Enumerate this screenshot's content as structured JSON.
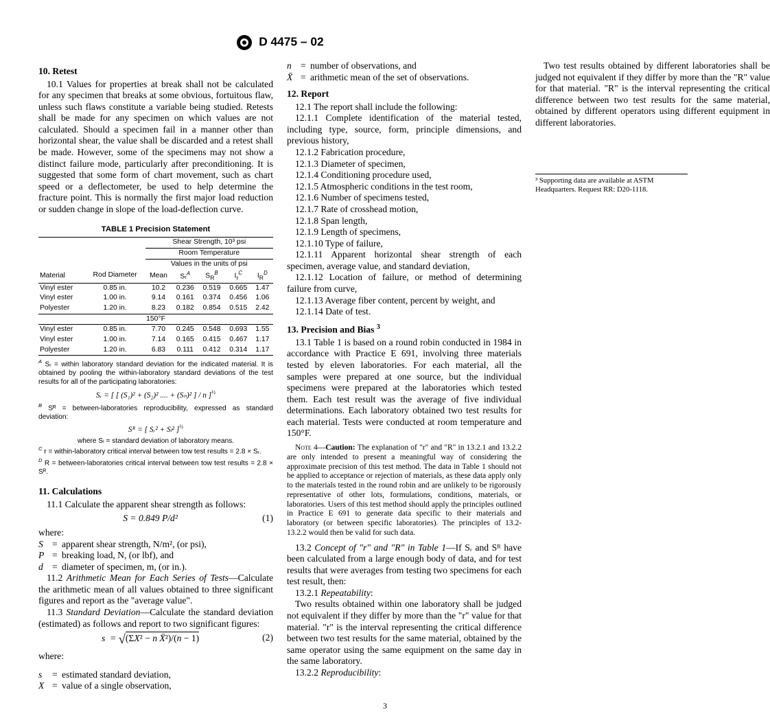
{
  "header": {
    "designation": "D 4475 – 02"
  },
  "s10": {
    "title": "10. Retest",
    "p1": "10.1 Values for properties at break shall not be calculated for any specimen that breaks at some obvious, fortuitous flaw, unless such flaws constitute a variable being studied. Retests shall be made for any specimen on which values are not calculated. Should a specimen fail in a manner other than horizontal shear, the value shall be discarded and a retest shall be made. However, some of the specimens may not show a distinct failure mode, particularly after preconditioning. It is suggested that some form of chart movement, such as chart speed or a deflectometer, be used to help determine the fracture point. This is normally the first major load reduction or sudden change in slope of the load-deflection curve."
  },
  "table1": {
    "title": "TABLE 1  Precision Statement",
    "head1": "Shear Strength, 10³ psi",
    "head2": "Room Temperature",
    "head3": "Values in the units of psi",
    "col_material": "Material",
    "col_rod": "Rod Diameter",
    "col_mean": "Mean",
    "col_sr": "Sᵣ",
    "col_sR": "S",
    "col_ir": "I",
    "col_iR": "I",
    "supA": "A",
    "supB": "B",
    "supC": "C",
    "supD": "D",
    "subR": "R",
    "subr": "r",
    "rows_rt": [
      [
        "Vinyl ester",
        "0.85 in.",
        "10.2",
        "0.236",
        "0.519",
        "0.665",
        "1.47"
      ],
      [
        "Vinyl ester",
        "1.00 in.",
        "9.14",
        "0.161",
        "0.374",
        "0.456",
        "1.06"
      ],
      [
        "Polyester",
        "1.20 in.",
        "8.23",
        "0.182",
        "0.854",
        "0.515",
        "2.42"
      ]
    ],
    "mid_label": "150°F",
    "rows_150": [
      [
        "Vinyl ester",
        "0.85 in.",
        "7.70",
        "0.245",
        "0.548",
        "0.693",
        "1.55"
      ],
      [
        "Vinyl ester",
        "1.00 in.",
        "7.14",
        "0.165",
        "0.415",
        "0.467",
        "1.17"
      ],
      [
        "Polyester",
        "1.20 in.",
        "6.83",
        "0.111",
        "0.412",
        "0.314",
        "1.17"
      ]
    ],
    "fnA": " Sᵣ = within laboratory standard deviation for the indicated material. It is obtained by pooling the within-laboratory standard deviations of the test results for all of the participating laboratories:",
    "fnA_eq": "Sᵣ = [ [ (S₁)² + (S₂)² .... + (Sₙ)² ] / n ]",
    "fnA_eq_exp": "½",
    "fnB": " Sᴿ = between-laboratories reproducibility, expressed as standard deviation:",
    "fnB_eq": "Sᴿ = [ Sᵣ² + Sₗ² ]",
    "fnB_eq_exp": "½",
    "fnB_sub": "where Sₗ = standard deviation of laboratory means.",
    "fnC": " r = within-laboratory critical interval between tow test results = 2.8 × Sᵣ.",
    "fnD": " R = between-laboratories critical interval between tow test results = 2.8 × Sᴿ."
  },
  "s11": {
    "title": "11. Calculations",
    "p1": "11.1 Calculate the apparent shear strength as follows:",
    "eq1": "S  = 0.849 P/d²",
    "eq1_num": "(1)",
    "where": "where:",
    "S": "apparent shear strength, N/m², (or psi),",
    "P": "breaking load, N, (or lbf), and",
    "d": "diameter of specimen, m, (or in.).",
    "p2a": "11.2 ",
    "p2i": "Arithmetic Mean for Each Series of Tests",
    "p2b": "—Calculate the arithmetic mean of all values obtained to three significant figures and report as the \"average value\".",
    "p3a": "11.3 ",
    "p3i": "Standard Deviation",
    "p3b": "—Calculate the standard deviation (estimated) as follows and report to two significant figures:",
    "eq2_num": "(2)",
    "where2": "where:",
    "s_def": "estimated standard deviation,",
    "X_def": "value of a single observation,",
    "n_def": "number of observations, and",
    "Xbar_def": "arithmetic mean of the set of observations."
  },
  "s12": {
    "title": "12. Report",
    "p1": "12.1 The report shall include the following:",
    "items": [
      "12.1.1 Complete identification of the material tested, including type, source, form, principle dimensions, and previous history,",
      "12.1.2 Fabrication procedure,",
      "12.1.3 Diameter of specimen,",
      "12.1.4 Conditioning procedure used,",
      "12.1.5 Atmospheric conditions in the test room,",
      "12.1.6 Number of specimens tested,",
      "12.1.7 Rate of crosshead motion,",
      "12.1.8 Span length,",
      "12.1.9 Length of specimens,",
      "12.1.10 Type of failure,",
      "12.1.11 Apparent horizontal shear strength of each specimen, average value, and standard deviation,",
      "12.1.12 Location of failure, or method of determining failure from curve,",
      "12.1.13 Average fiber content, percent by weight, and",
      "12.1.14 Date of test."
    ]
  },
  "s13": {
    "title": "13. Precision and Bias ",
    "title_sup": "3",
    "p1": "13.1 Table 1 is based on a round robin conducted in 1984 in accordance with Practice E 691, involving three materials tested by eleven laboratories. For each material, all the samples were prepared at one source, but the individual specimens were prepared at the laboratories which tested them. Each test result was the average of five individual determinations. Each laboratory obtained two test results for each material. Tests were conducted at room temperature and 150°F.",
    "note4_label": "Note 4—",
    "note4_caution": "Caution:",
    "note4_body": " The explanation of \"r\" and \"R\" in 13.2.1 and 13.2.2 are only intended to present a meaningful way of considering the approximate precision of this test method. The data in Table 1 should not be applied to acceptance or rejection of materials, as these data apply only to the materials tested in the round robin and are unlikely to be rigorously representative of other lots, formulations, conditions, materials, or laboratories. Users of this test method should apply the principles outlined in Practice E 691 to generate data specific to their materials and laboratory (or between specific laboratories). The principles of 13.2-13.2.2 would then be valid for such data.",
    "p2a": "13.2 ",
    "p2i": "Concept of \"r\" and \"R\" in Table 1",
    "p2b": "—If Sᵣ and Sᴿ have been calculated from a large enough body of data, and for test results that were averages from testing two specimens for each test result, then:",
    "p3a": "13.2.1 ",
    "p3i": "Repeatability",
    "p3b": ":",
    "p3c": "Two results obtained within one laboratory shall be judged not equivalent if they differ by more than the \"r\" value for that material. \"r\" is the interval representing the critical difference between two test results for the same material, obtained by the same operator using the same equipment on the same day in the same laboratory.",
    "p4a": "13.2.2 ",
    "p4i": "Reproducibility",
    "p4b": ":",
    "p4c": "Two test results obtained by different laboratories shall be judged not equivalent if they differ by more than the \"R\" value for that material. \"R\" is the interval representing the critical difference between two test results for the same material, obtained by different operators using different equipment in different laboratories."
  },
  "footnote3": "³ Supporting data are available at ASTM Headquarters. Request RR: D20-1118.",
  "page_num": "3"
}
